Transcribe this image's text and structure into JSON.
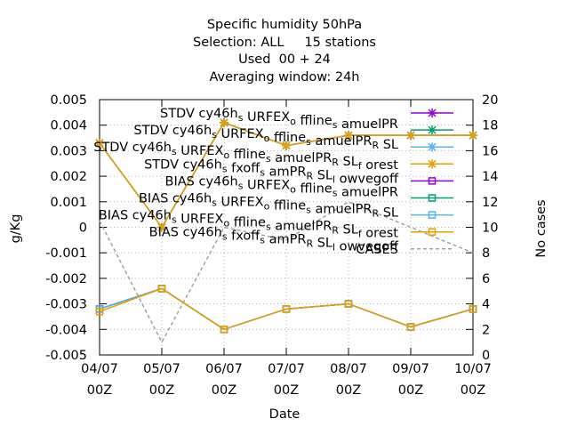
{
  "chart_data": {
    "type": "line",
    "title": [
      "Specific humidity 50hPa",
      "Selection: ALL     15 stations",
      "Used  00 + 24",
      "Averaging window: 24h"
    ],
    "xlabel": "Date",
    "ylabel": "g/Kg",
    "y2label": "No cases",
    "categories": [
      [
        "04/07",
        "00Z"
      ],
      [
        "05/07",
        "00Z"
      ],
      [
        "06/07",
        "00Z"
      ],
      [
        "07/07",
        "00Z"
      ],
      [
        "08/07",
        "00Z"
      ],
      [
        "09/07",
        "00Z"
      ],
      [
        "10/07",
        "00Z"
      ]
    ],
    "ylim": [
      -0.005,
      0.005
    ],
    "yticks": [
      "-0.005",
      "-0.004",
      "-0.003",
      "-0.002",
      "-0.001",
      "0",
      "0.001",
      "0.002",
      "0.003",
      "0.004",
      "0.005"
    ],
    "y2lim": [
      0,
      20
    ],
    "y2ticks": [
      "0",
      "2",
      "4",
      "6",
      "8",
      "10",
      "12",
      "14",
      "16",
      "18",
      "20"
    ],
    "grid": true,
    "legend_position": "top-right",
    "series": [
      {
        "name": "STDV cy46h_s URFEX_o ffline_s amuelPR",
        "axis": "y",
        "marker": "x",
        "color": "#9400d3",
        "values": [
          0.0033,
          0.0,
          0.0041,
          0.0032,
          0.0036,
          0.0036,
          0.0036
        ]
      },
      {
        "name": "STDV cy46h_s URFEX_o ffline_s amuelPR_R SL",
        "axis": "y",
        "marker": "x",
        "color": "#009e73",
        "values": [
          0.0033,
          0.0,
          0.0041,
          0.0032,
          0.0036,
          0.0036,
          0.0036
        ]
      },
      {
        "name": "STDV cy46h_s URFEX_o ffline_s amuelPR_R SL_f orest",
        "axis": "y",
        "marker": "x",
        "color": "#56b4e9",
        "values": [
          0.0033,
          0.0,
          0.0041,
          0.0032,
          0.0036,
          0.0036,
          0.0036
        ]
      },
      {
        "name": "STDV cy46h_s fxoff_s amPR_R SL_l owvegoff",
        "axis": "y",
        "marker": "x",
        "color": "#e69f00",
        "values": [
          0.0033,
          0.0,
          0.0041,
          0.0032,
          0.0036,
          0.0036,
          0.0036
        ]
      },
      {
        "name": "BIAS cy46h_s URFEX_o ffline_s amuelPR",
        "axis": "y",
        "marker": "square",
        "color": "#9400d3",
        "values": [
          -0.0032,
          -0.0024,
          -0.004,
          -0.0032,
          -0.003,
          -0.0039,
          -0.0032
        ]
      },
      {
        "name": "BIAS cy46h_s URFEX_o ffline_s amuelPR_R SL",
        "axis": "y",
        "marker": "square",
        "color": "#009e73",
        "values": [
          -0.0032,
          -0.0024,
          -0.004,
          -0.0032,
          -0.003,
          -0.0039,
          -0.0032
        ]
      },
      {
        "name": "BIAS cy46h_s URFEX_o ffline_s amuelPR_R SL_f orest",
        "axis": "y",
        "marker": "square",
        "color": "#56b4e9",
        "values": [
          -0.0032,
          -0.0024,
          -0.004,
          -0.0032,
          -0.003,
          -0.0039,
          -0.0032
        ]
      },
      {
        "name": "BIAS cy46h_s fxoff_s amPR_R SL_l owvegoff",
        "axis": "y",
        "marker": "square",
        "color": "#e69f00",
        "values": [
          -0.0033,
          -0.0024,
          -0.004,
          -0.0032,
          -0.003,
          -0.0039,
          -0.0032
        ]
      },
      {
        "name": "CASES",
        "axis": "y2",
        "marker": "none",
        "dashed": true,
        "color": "#a0a0a0",
        "values": [
          10.5,
          1.0,
          10.0,
          9.0,
          12.0,
          10.0,
          8.0
        ]
      }
    ]
  }
}
